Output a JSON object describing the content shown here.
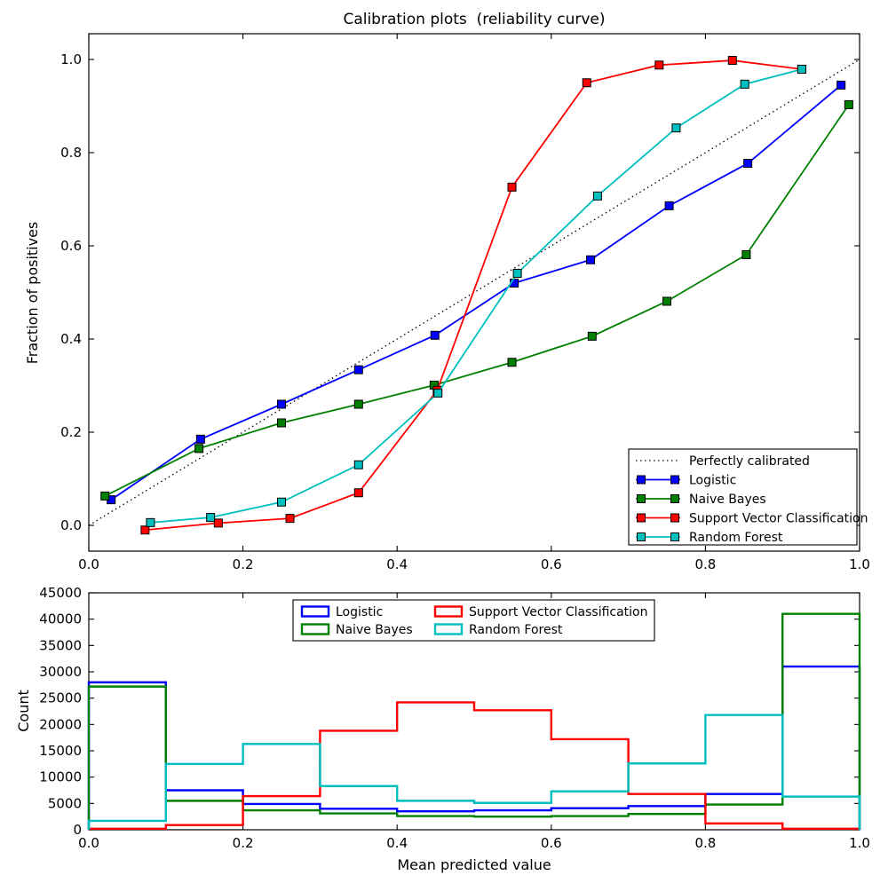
{
  "figure": {
    "background": "#ffffff"
  },
  "chart_data": [
    {
      "type": "line",
      "title": "Calibration plots  (reliability curve)",
      "xlabel": "",
      "ylabel": "Fraction of positives",
      "xlim": [
        0.0,
        1.0
      ],
      "ylim": [
        -0.05,
        1.05
      ],
      "grid": false,
      "xtick_values": [
        0.0,
        0.2,
        0.4,
        0.6,
        0.8,
        1.0
      ],
      "xtick_labels": [
        "0.0",
        "0.2",
        "0.4",
        "0.6",
        "0.8",
        "1.0"
      ],
      "ytick_values": [
        0.0,
        0.2,
        0.4,
        0.6,
        0.8,
        1.0
      ],
      "ytick_labels": [
        "0.0",
        "0.2",
        "0.4",
        "0.6",
        "0.8",
        "1.0"
      ],
      "legend_position": "lower right",
      "reference_line": {
        "label": "Perfectly calibrated",
        "style": "dotted",
        "color": "#000000",
        "x": [
          0.0,
          1.0
        ],
        "y": [
          0.0,
          1.0
        ]
      },
      "series": [
        {
          "name": "Logistic",
          "color": "#0000ff",
          "marker": "square",
          "x": [
            0.029,
            0.145,
            0.25,
            0.35,
            0.449,
            0.552,
            0.651,
            0.753,
            0.855,
            0.976
          ],
          "y": [
            0.055,
            0.185,
            0.26,
            0.334,
            0.408,
            0.52,
            0.57,
            0.686,
            0.777,
            0.945
          ]
        },
        {
          "name": "Naive Bayes",
          "color": "#008000",
          "marker": "square",
          "x": [
            0.021,
            0.143,
            0.25,
            0.35,
            0.448,
            0.549,
            0.653,
            0.75,
            0.853,
            0.986
          ],
          "y": [
            0.063,
            0.165,
            0.22,
            0.26,
            0.301,
            0.35,
            0.406,
            0.481,
            0.581,
            0.903
          ]
        },
        {
          "name": "Support Vector Classification",
          "color": "#ff0000",
          "marker": "square",
          "x": [
            0.073,
            0.168,
            0.261,
            0.35,
            0.452,
            0.549,
            0.646,
            0.74,
            0.835,
            0.925
          ],
          "y": [
            -0.01,
            0.005,
            0.015,
            0.07,
            0.29,
            0.726,
            0.95,
            0.988,
            0.998,
            0.979
          ]
        },
        {
          "name": "Random Forest",
          "color": "#00bfbf",
          "marker": "square",
          "x": [
            0.08,
            0.158,
            0.25,
            0.35,
            0.453,
            0.556,
            0.66,
            0.762,
            0.851,
            0.925
          ],
          "y": [
            0.006,
            0.017,
            0.05,
            0.13,
            0.284,
            0.541,
            0.707,
            0.853,
            0.947,
            0.979
          ]
        }
      ]
    },
    {
      "type": "step-histogram",
      "title": "",
      "xlabel": "Mean predicted value",
      "ylabel": "Count",
      "xlim": [
        0.0,
        1.0
      ],
      "ylim": [
        0,
        45000
      ],
      "grid": false,
      "xtick_values": [
        0.0,
        0.2,
        0.4,
        0.6,
        0.8,
        1.0
      ],
      "xtick_labels": [
        "0.0",
        "0.2",
        "0.4",
        "0.6",
        "0.8",
        "1.0"
      ],
      "ytick_values": [
        0,
        5000,
        10000,
        15000,
        20000,
        25000,
        30000,
        35000,
        40000,
        45000
      ],
      "ytick_labels": [
        "0",
        "5000",
        "10000",
        "15000",
        "20000",
        "25000",
        "30000",
        "35000",
        "40000",
        "45000"
      ],
      "legend_position": "upper center",
      "bin_edges": [
        0.0,
        0.1,
        0.2,
        0.3,
        0.4,
        0.5,
        0.6,
        0.7,
        0.8,
        0.9,
        1.0
      ],
      "series": [
        {
          "name": "Logistic",
          "color": "#0000ff",
          "counts": [
            28000,
            7500,
            4900,
            4000,
            3500,
            3700,
            4100,
            4500,
            6800,
            31000
          ]
        },
        {
          "name": "Naive Bayes",
          "color": "#008000",
          "counts": [
            27200,
            5500,
            3700,
            3100,
            2600,
            2500,
            2600,
            3000,
            4800,
            41000
          ]
        },
        {
          "name": "Support Vector Classification",
          "color": "#ff0000",
          "counts": [
            200,
            900,
            6400,
            18800,
            24200,
            22700,
            17200,
            6800,
            1200,
            200
          ]
        },
        {
          "name": "Random Forest",
          "color": "#00bfbf",
          "counts": [
            1700,
            12500,
            16300,
            8300,
            5500,
            5100,
            7300,
            12600,
            21800,
            6300
          ]
        }
      ]
    }
  ]
}
